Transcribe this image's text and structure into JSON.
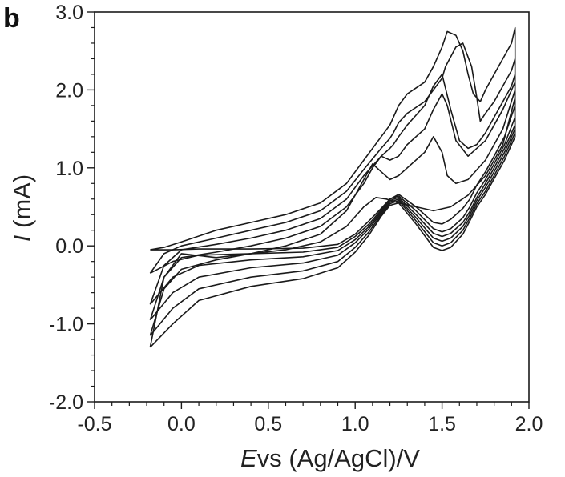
{
  "panel_label": "b",
  "chart_data": {
    "type": "line",
    "title": "",
    "xlabel": {
      "italic": "E",
      "rest": "vs (Ag/AgCl)/V"
    },
    "ylabel": {
      "italic": "I",
      "rest": " (mA)"
    },
    "xlim": [
      -0.5,
      2.0
    ],
    "ylim": [
      -2.0,
      3.0
    ],
    "xticks": [
      -0.5,
      0.0,
      0.5,
      1.0,
      1.5,
      2.0
    ],
    "xtick_labels": [
      "-0.5",
      "0.0",
      "0.5",
      "1.0",
      "1.5",
      "2.0"
    ],
    "yticks": [
      -2.0,
      -1.0,
      0.0,
      1.0,
      2.0,
      3.0
    ],
    "ytick_labels": [
      "-2.0",
      "-1.0",
      "0.0",
      "1.0",
      "2.0",
      "3.0"
    ],
    "grid": false,
    "legend": "none",
    "series": [
      {
        "x": [
          -0.18,
          -0.05,
          0.1,
          0.4,
          0.7,
          0.9,
          1.0,
          1.08,
          1.15,
          1.2,
          1.25,
          1.35,
          1.45,
          1.5,
          1.55,
          1.62,
          1.66,
          1.7,
          1.75,
          1.8,
          1.86,
          1.92,
          1.92,
          1.9,
          1.85,
          1.8,
          1.75,
          1.72,
          1.68,
          1.65,
          1.62,
          1.58,
          1.53,
          1.5,
          1.45,
          1.4,
          1.3,
          1.25,
          1.22,
          1.2,
          1.15,
          1.05,
          0.95,
          0.8,
          0.6,
          0.4,
          0.2,
          0.0,
          -0.1,
          -0.18
        ],
        "y": [
          -0.05,
          -0.05,
          -0.04,
          -0.04,
          -0.03,
          0.02,
          0.15,
          0.32,
          0.48,
          0.6,
          0.66,
          0.5,
          0.3,
          0.28,
          0.34,
          0.48,
          0.6,
          0.78,
          0.95,
          1.15,
          1.4,
          1.8,
          2.8,
          2.6,
          2.4,
          2.2,
          2.0,
          1.85,
          1.95,
          2.2,
          2.5,
          2.7,
          2.75,
          2.55,
          2.3,
          2.1,
          1.95,
          1.8,
          1.65,
          1.55,
          1.4,
          1.1,
          0.8,
          0.55,
          0.4,
          0.3,
          0.2,
          0.05,
          -0.02,
          -0.05
        ]
      },
      {
        "x": [
          -0.18,
          -0.05,
          0.1,
          0.4,
          0.7,
          0.9,
          1.0,
          1.08,
          1.15,
          1.2,
          1.25,
          1.35,
          1.45,
          1.5,
          1.55,
          1.62,
          1.66,
          1.7,
          1.75,
          1.8,
          1.86,
          1.92,
          1.92,
          1.9,
          1.85,
          1.8,
          1.75,
          1.72,
          1.7,
          1.67,
          1.62,
          1.58,
          1.52,
          1.5,
          1.45,
          1.4,
          1.3,
          1.25,
          1.22,
          1.2,
          1.15,
          1.05,
          0.95,
          0.8,
          0.6,
          0.4,
          0.2,
          0.0,
          -0.1,
          -0.18
        ],
        "y": [
          -0.35,
          -0.2,
          -0.12,
          -0.1,
          -0.08,
          -0.02,
          0.12,
          0.28,
          0.46,
          0.6,
          0.64,
          0.45,
          0.22,
          0.18,
          0.22,
          0.36,
          0.5,
          0.68,
          0.85,
          1.05,
          1.3,
          1.65,
          2.4,
          2.25,
          2.05,
          1.85,
          1.7,
          1.6,
          1.9,
          2.3,
          2.6,
          2.55,
          2.3,
          2.15,
          2.0,
          1.85,
          1.7,
          1.58,
          1.45,
          1.38,
          1.25,
          0.98,
          0.7,
          0.45,
          0.3,
          0.2,
          0.1,
          0.0,
          -0.1,
          -0.35
        ]
      },
      {
        "x": [
          -0.18,
          -0.05,
          0.1,
          0.4,
          0.7,
          0.9,
          1.0,
          1.08,
          1.15,
          1.2,
          1.25,
          1.35,
          1.45,
          1.5,
          1.55,
          1.62,
          1.66,
          1.7,
          1.75,
          1.8,
          1.86,
          1.92,
          1.92,
          1.9,
          1.85,
          1.8,
          1.75,
          1.7,
          1.65,
          1.6,
          1.55,
          1.5,
          1.45,
          1.4,
          1.3,
          1.25,
          1.22,
          1.2,
          1.15,
          1.05,
          0.95,
          0.8,
          0.6,
          0.4,
          0.2,
          0.0,
          -0.1,
          -0.18
        ],
        "y": [
          -0.75,
          -0.4,
          -0.25,
          -0.18,
          -0.14,
          -0.06,
          0.08,
          0.25,
          0.44,
          0.58,
          0.62,
          0.4,
          0.16,
          0.12,
          0.16,
          0.3,
          0.44,
          0.62,
          0.8,
          1.0,
          1.25,
          1.55,
          2.2,
          2.05,
          1.85,
          1.65,
          1.45,
          1.3,
          1.25,
          1.35,
          1.75,
          2.2,
          2.05,
          1.8,
          1.55,
          1.4,
          1.3,
          1.25,
          1.15,
          0.9,
          0.6,
          0.35,
          0.2,
          0.1,
          0.02,
          -0.05,
          -0.25,
          -0.75
        ]
      },
      {
        "x": [
          -0.18,
          -0.05,
          0.1,
          0.4,
          0.7,
          0.9,
          1.0,
          1.08,
          1.15,
          1.2,
          1.25,
          1.35,
          1.45,
          1.5,
          1.55,
          1.62,
          1.66,
          1.7,
          1.75,
          1.8,
          1.86,
          1.92,
          1.92,
          1.85,
          1.75,
          1.65,
          1.58,
          1.53,
          1.5,
          1.45,
          1.4,
          1.3,
          1.25,
          1.2,
          1.15,
          1.1,
          1.05,
          0.95,
          0.8,
          0.6,
          0.4,
          0.2,
          0.0,
          -0.1,
          -0.18
        ],
        "y": [
          -0.95,
          -0.6,
          -0.4,
          -0.28,
          -0.22,
          -0.12,
          0.04,
          0.22,
          0.42,
          0.56,
          0.6,
          0.36,
          0.1,
          0.06,
          0.1,
          0.25,
          0.4,
          0.58,
          0.75,
          0.95,
          1.2,
          1.5,
          2.1,
          1.75,
          1.35,
          1.15,
          1.35,
          1.8,
          1.95,
          1.75,
          1.5,
          1.3,
          1.15,
          1.1,
          1.15,
          1.0,
          0.8,
          0.5,
          0.25,
          0.1,
          0.0,
          -0.08,
          -0.15,
          -0.4,
          -0.95
        ]
      },
      {
        "x": [
          -0.18,
          -0.05,
          0.1,
          0.4,
          0.7,
          0.9,
          1.0,
          1.08,
          1.15,
          1.2,
          1.25,
          1.35,
          1.45,
          1.5,
          1.55,
          1.62,
          1.66,
          1.7,
          1.75,
          1.8,
          1.86,
          1.92,
          1.92,
          1.85,
          1.75,
          1.65,
          1.58,
          1.53,
          1.5,
          1.45,
          1.4,
          1.3,
          1.25,
          1.2,
          1.15,
          1.1,
          1.05,
          0.95,
          0.8,
          0.6,
          0.4,
          0.2,
          0.0,
          -0.1,
          -0.18
        ],
        "y": [
          -1.15,
          -0.8,
          -0.55,
          -0.4,
          -0.32,
          -0.2,
          -0.02,
          0.18,
          0.4,
          0.54,
          0.58,
          0.32,
          0.04,
          0.0,
          0.04,
          0.2,
          0.36,
          0.54,
          0.7,
          0.9,
          1.15,
          1.45,
          2.0,
          1.5,
          1.1,
          0.85,
          0.8,
          0.9,
          1.2,
          1.4,
          1.2,
          1.0,
          0.9,
          0.85,
          0.95,
          1.05,
          0.85,
          0.45,
          0.15,
          0.0,
          -0.1,
          -0.18,
          -0.3,
          -0.55,
          -1.15
        ]
      },
      {
        "x": [
          -0.18,
          -0.05,
          0.1,
          0.4,
          0.7,
          0.9,
          1.0,
          1.08,
          1.15,
          1.2,
          1.25,
          1.35,
          1.45,
          1.5,
          1.55,
          1.62,
          1.66,
          1.7,
          1.75,
          1.8,
          1.86,
          1.92,
          1.92,
          1.85,
          1.75,
          1.65,
          1.55,
          1.45,
          1.35,
          1.25,
          1.18,
          1.12,
          1.05,
          0.95,
          0.8,
          0.6,
          0.4,
          0.2,
          0.0,
          -0.1,
          -0.18
        ],
        "y": [
          -1.3,
          -1.0,
          -0.7,
          -0.52,
          -0.42,
          -0.28,
          -0.08,
          0.14,
          0.38,
          0.52,
          0.55,
          0.28,
          -0.02,
          -0.06,
          -0.02,
          0.15,
          0.32,
          0.5,
          0.66,
          0.86,
          1.1,
          1.4,
          1.9,
          1.3,
          0.9,
          0.65,
          0.5,
          0.45,
          0.5,
          0.55,
          0.6,
          0.62,
          0.5,
          0.25,
          0.05,
          -0.05,
          -0.1,
          -0.15,
          -0.1,
          -0.4,
          -1.3
        ]
      }
    ]
  }
}
